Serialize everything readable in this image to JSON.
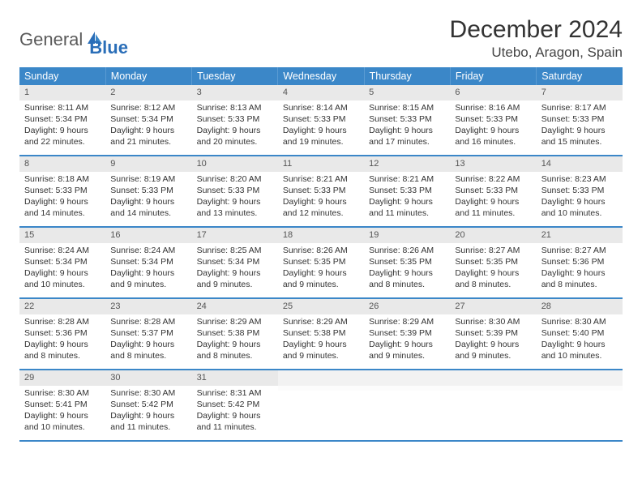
{
  "logo": {
    "general": "General",
    "blue": "Blue"
  },
  "title": "December 2024",
  "location": "Utebo, Aragon, Spain",
  "colors": {
    "header_bg": "#3b87c8",
    "header_text": "#ffffff",
    "row_border": "#3b87c8",
    "daynum_bg": "#e9e9e9",
    "body_text": "#333333",
    "logo_gray": "#5a5a5a",
    "logo_blue": "#2a6eb8"
  },
  "weekdays": [
    "Sunday",
    "Monday",
    "Tuesday",
    "Wednesday",
    "Thursday",
    "Friday",
    "Saturday"
  ],
  "weeks": [
    [
      {
        "n": "1",
        "sr": "8:11 AM",
        "ss": "5:34 PM",
        "dl": "9 hours and 22 minutes."
      },
      {
        "n": "2",
        "sr": "8:12 AM",
        "ss": "5:34 PM",
        "dl": "9 hours and 21 minutes."
      },
      {
        "n": "3",
        "sr": "8:13 AM",
        "ss": "5:33 PM",
        "dl": "9 hours and 20 minutes."
      },
      {
        "n": "4",
        "sr": "8:14 AM",
        "ss": "5:33 PM",
        "dl": "9 hours and 19 minutes."
      },
      {
        "n": "5",
        "sr": "8:15 AM",
        "ss": "5:33 PM",
        "dl": "9 hours and 17 minutes."
      },
      {
        "n": "6",
        "sr": "8:16 AM",
        "ss": "5:33 PM",
        "dl": "9 hours and 16 minutes."
      },
      {
        "n": "7",
        "sr": "8:17 AM",
        "ss": "5:33 PM",
        "dl": "9 hours and 15 minutes."
      }
    ],
    [
      {
        "n": "8",
        "sr": "8:18 AM",
        "ss": "5:33 PM",
        "dl": "9 hours and 14 minutes."
      },
      {
        "n": "9",
        "sr": "8:19 AM",
        "ss": "5:33 PM",
        "dl": "9 hours and 14 minutes."
      },
      {
        "n": "10",
        "sr": "8:20 AM",
        "ss": "5:33 PM",
        "dl": "9 hours and 13 minutes."
      },
      {
        "n": "11",
        "sr": "8:21 AM",
        "ss": "5:33 PM",
        "dl": "9 hours and 12 minutes."
      },
      {
        "n": "12",
        "sr": "8:21 AM",
        "ss": "5:33 PM",
        "dl": "9 hours and 11 minutes."
      },
      {
        "n": "13",
        "sr": "8:22 AM",
        "ss": "5:33 PM",
        "dl": "9 hours and 11 minutes."
      },
      {
        "n": "14",
        "sr": "8:23 AM",
        "ss": "5:33 PM",
        "dl": "9 hours and 10 minutes."
      }
    ],
    [
      {
        "n": "15",
        "sr": "8:24 AM",
        "ss": "5:34 PM",
        "dl": "9 hours and 10 minutes."
      },
      {
        "n": "16",
        "sr": "8:24 AM",
        "ss": "5:34 PM",
        "dl": "9 hours and 9 minutes."
      },
      {
        "n": "17",
        "sr": "8:25 AM",
        "ss": "5:34 PM",
        "dl": "9 hours and 9 minutes."
      },
      {
        "n": "18",
        "sr": "8:26 AM",
        "ss": "5:35 PM",
        "dl": "9 hours and 9 minutes."
      },
      {
        "n": "19",
        "sr": "8:26 AM",
        "ss": "5:35 PM",
        "dl": "9 hours and 8 minutes."
      },
      {
        "n": "20",
        "sr": "8:27 AM",
        "ss": "5:35 PM",
        "dl": "9 hours and 8 minutes."
      },
      {
        "n": "21",
        "sr": "8:27 AM",
        "ss": "5:36 PM",
        "dl": "9 hours and 8 minutes."
      }
    ],
    [
      {
        "n": "22",
        "sr": "8:28 AM",
        "ss": "5:36 PM",
        "dl": "9 hours and 8 minutes."
      },
      {
        "n": "23",
        "sr": "8:28 AM",
        "ss": "5:37 PM",
        "dl": "9 hours and 8 minutes."
      },
      {
        "n": "24",
        "sr": "8:29 AM",
        "ss": "5:38 PM",
        "dl": "9 hours and 8 minutes."
      },
      {
        "n": "25",
        "sr": "8:29 AM",
        "ss": "5:38 PM",
        "dl": "9 hours and 9 minutes."
      },
      {
        "n": "26",
        "sr": "8:29 AM",
        "ss": "5:39 PM",
        "dl": "9 hours and 9 minutes."
      },
      {
        "n": "27",
        "sr": "8:30 AM",
        "ss": "5:39 PM",
        "dl": "9 hours and 9 minutes."
      },
      {
        "n": "28",
        "sr": "8:30 AM",
        "ss": "5:40 PM",
        "dl": "9 hours and 10 minutes."
      }
    ],
    [
      {
        "n": "29",
        "sr": "8:30 AM",
        "ss": "5:41 PM",
        "dl": "9 hours and 10 minutes."
      },
      {
        "n": "30",
        "sr": "8:30 AM",
        "ss": "5:42 PM",
        "dl": "9 hours and 11 minutes."
      },
      {
        "n": "31",
        "sr": "8:31 AM",
        "ss": "5:42 PM",
        "dl": "9 hours and 11 minutes."
      },
      null,
      null,
      null,
      null
    ]
  ],
  "labels": {
    "sunrise": "Sunrise:",
    "sunset": "Sunset:",
    "daylight": "Daylight:"
  }
}
